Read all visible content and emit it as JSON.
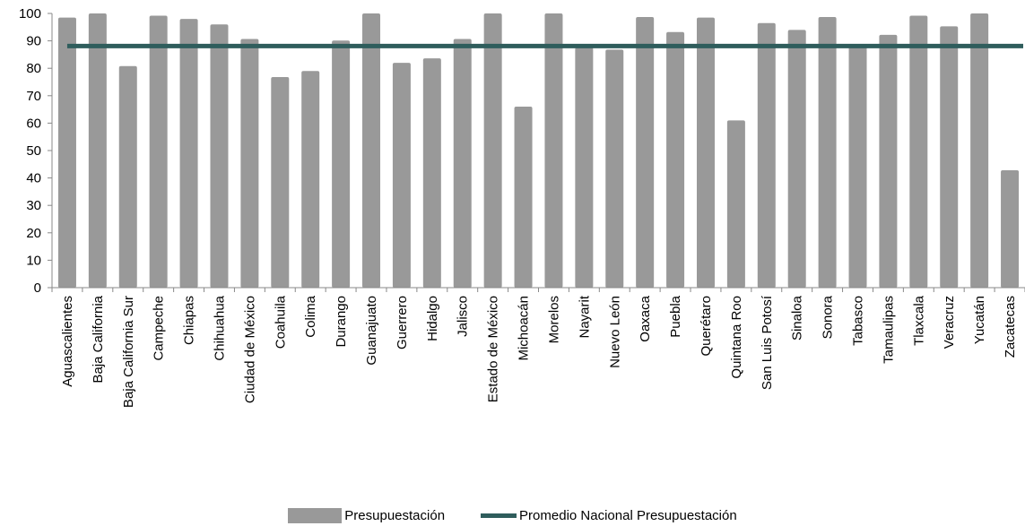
{
  "chart_data": {
    "type": "bar",
    "categories": [
      "Aguascalientes",
      "Baja California",
      "Baja California Sur",
      "Campeche",
      "Chiapas",
      "Chihuahua",
      "Ciudad de México",
      "Coahuila",
      "Colima",
      "Durango",
      "Guanajuato",
      "Guerrero",
      "Hidalgo",
      "Jalisco",
      "Estado de México",
      "Michoacán",
      "Morelos",
      "Nayarit",
      "Nuevo León",
      "Oaxaca",
      "Puebla",
      "Querétaro",
      "Quintana Roo",
      "San Luis Potosí",
      "Sinaloa",
      "Sonora",
      "Tabasco",
      "Tamaulipas",
      "Tlaxcala",
      "Veracruz",
      "Yucatán",
      "Zacatecas"
    ],
    "series": [
      {
        "name": "Presupuestación",
        "values": [
          98.5,
          100,
          80.8,
          99.2,
          98,
          96,
          90.7,
          76.8,
          79,
          90.1,
          100,
          82,
          83.6,
          90.7,
          100,
          66,
          100,
          87.6,
          86.8,
          98.7,
          93.2,
          98.5,
          61,
          96.5,
          94,
          98.7,
          88,
          92.2,
          99.2,
          95.3,
          100,
          42.8
        ]
      },
      {
        "name": "Promedio Nacional Presupuestación",
        "constant": 88.1
      }
    ],
    "ylim": [
      0,
      100
    ],
    "yticks": [
      0,
      10,
      20,
      30,
      40,
      50,
      60,
      70,
      80,
      90,
      100
    ],
    "colors": {
      "bars": "#999999",
      "average_line": "#2f5d5c"
    },
    "legend_position": "bottom"
  },
  "legend": {
    "bars_label": "Presupuestación",
    "line_label": "Promedio Nacional Presupuestación"
  }
}
